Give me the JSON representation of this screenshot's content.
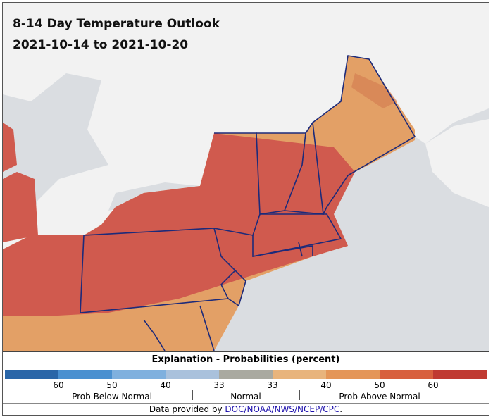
{
  "header": {
    "title": "8-14 Day Temperature Outlook",
    "dates": "2021-10-14 to 2021-10-20"
  },
  "legend": {
    "title": "Explanation - Probabilities (percent)",
    "colors": [
      "#2a66a8",
      "#4a90d0",
      "#7fb0de",
      "#a9c1dc",
      "#a9a9a0",
      "#e8b47c",
      "#e49658",
      "#d8603e",
      "#c03a32"
    ],
    "labels": [
      "60",
      "50",
      "40",
      "33",
      "33",
      "40",
      "50",
      "60"
    ],
    "groups": [
      "Prob Below Normal",
      "Normal",
      "Prob Above Normal"
    ]
  },
  "footer": {
    "text": "Data provided by",
    "link": "DOC/NOAA/NWS/NCEP/CPC",
    "end": "."
  }
}
